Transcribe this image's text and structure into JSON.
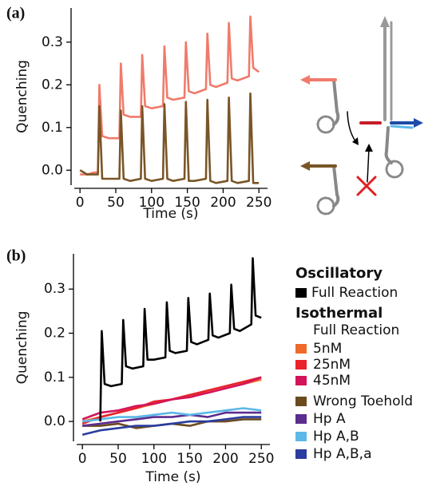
{
  "chart_data": [
    {
      "type": "line",
      "panel": "(a)",
      "x_label": "Time (s)",
      "y_label": "Quenching",
      "xlim": [
        -8,
        262
      ],
      "ylim": [
        -0.035,
        0.38
      ],
      "xticks": [
        0,
        50,
        100,
        150,
        200,
        250
      ],
      "yticks": [
        {
          "value": 0,
          "label": "0.0"
        },
        {
          "value": 0.1,
          "label": "0.1"
        },
        {
          "value": 0.2,
          "label": "0.2"
        },
        {
          "value": 0.3,
          "label": "0.3"
        }
      ],
      "x": [
        0,
        10,
        20,
        25,
        27,
        31,
        40,
        55,
        57,
        61,
        70,
        85,
        87,
        91,
        100,
        116,
        118,
        122,
        130,
        146,
        148,
        152,
        160,
        176,
        178,
        182,
        190,
        206,
        208,
        212,
        220,
        236,
        238,
        242,
        250
      ],
      "series": [
        {
          "color": "#ef7b6a",
          "values": [
            -0.01,
            -0.01,
            -0.005,
            -0.005,
            0.2,
            0.08,
            0.075,
            0.075,
            0.25,
            0.13,
            0.125,
            0.125,
            0.27,
            0.15,
            0.145,
            0.15,
            0.29,
            0.17,
            0.165,
            0.17,
            0.3,
            0.185,
            0.18,
            0.19,
            0.32,
            0.2,
            0.195,
            0.205,
            0.345,
            0.215,
            0.21,
            0.22,
            0.36,
            0.24,
            0.23
          ]
        },
        {
          "color": "#7a5527",
          "values": [
            0,
            -0.01,
            -0.01,
            -0.01,
            0.15,
            -0.02,
            -0.02,
            -0.02,
            0.14,
            -0.02,
            -0.025,
            -0.02,
            0.15,
            -0.02,
            -0.025,
            -0.02,
            0.155,
            -0.02,
            -0.025,
            -0.02,
            0.16,
            -0.025,
            -0.025,
            -0.02,
            0.165,
            -0.025,
            -0.03,
            -0.025,
            0.17,
            -0.025,
            -0.03,
            -0.025,
            0.18,
            -0.03,
            -0.03
          ]
        }
      ]
    },
    {
      "type": "line",
      "panel": "(b)",
      "x_label": "Time (s)",
      "y_label": "Quenching",
      "xlim": [
        -8,
        262
      ],
      "ylim": [
        -0.045,
        0.38
      ],
      "xticks": [
        0,
        50,
        100,
        150,
        200,
        250
      ],
      "yticks": [
        {
          "value": 0,
          "label": "0.0"
        },
        {
          "value": 0.1,
          "label": "0.1"
        },
        {
          "value": 0.2,
          "label": "0.2"
        },
        {
          "value": 0.3,
          "label": "0.3"
        }
      ],
      "legend": true,
      "legend_headings": [
        "Oscillatory",
        "Isothermal",
        "Full Reaction"
      ],
      "series": [
        {
          "name": "5nM",
          "color": "#ef6a2a",
          "x": [
            0,
            25,
            50,
            75,
            100,
            125,
            150,
            175,
            200,
            225,
            250
          ],
          "values": [
            0,
            0.01,
            0.02,
            0.03,
            0.04,
            0.05,
            0.06,
            0.065,
            0.075,
            0.085,
            0.095
          ]
        },
        {
          "name": "25nM",
          "color": "#e8232a",
          "x": [
            0,
            25,
            50,
            75,
            100,
            125,
            150,
            175,
            200,
            225,
            250
          ],
          "values": [
            -0.005,
            0.01,
            0.02,
            0.03,
            0.045,
            0.05,
            0.06,
            0.07,
            0.08,
            0.09,
            0.1
          ]
        },
        {
          "name": "45nM",
          "color": "#d4145a",
          "x": [
            0,
            25,
            50,
            75,
            100,
            125,
            150,
            175,
            200,
            225,
            250
          ],
          "values": [
            0.005,
            0.02,
            0.025,
            0.035,
            0.04,
            0.05,
            0.055,
            0.065,
            0.075,
            0.085,
            0.1
          ]
        },
        {
          "name": "Wrong Toehold",
          "color": "#6b4a1e",
          "x": [
            0,
            25,
            50,
            75,
            100,
            125,
            150,
            175,
            200,
            225,
            250
          ],
          "values": [
            -0.01,
            -0.01,
            -0.005,
            -0.015,
            -0.01,
            -0.005,
            -0.01,
            0,
            0,
            0.005,
            0.005
          ]
        },
        {
          "name": "Hp A",
          "color": "#5b2d8e",
          "x": [
            0,
            25,
            50,
            75,
            100,
            125,
            150,
            175,
            200,
            225,
            250
          ],
          "values": [
            -0.01,
            -0.005,
            0,
            0.005,
            0.01,
            0.01,
            0.015,
            0.01,
            0.02,
            0.02,
            0.02
          ]
        },
        {
          "name": "Hp A,B",
          "color": "#5bb8e8",
          "x": [
            0,
            25,
            50,
            75,
            100,
            125,
            150,
            175,
            200,
            225,
            250
          ],
          "values": [
            0,
            0.005,
            0.01,
            0.01,
            0.015,
            0.02,
            0.015,
            0.02,
            0.025,
            0.03,
            0.025
          ]
        },
        {
          "name": "Hp A,B,a",
          "color": "#2b3d9e",
          "x": [
            0,
            25,
            50,
            75,
            100,
            125,
            150,
            175,
            200,
            225,
            250
          ],
          "values": [
            -0.03,
            -0.02,
            -0.015,
            -0.01,
            -0.01,
            -0.005,
            0,
            0,
            0.005,
            0.01,
            0.01
          ]
        },
        {
          "name": "Full Reaction",
          "color": "#000000",
          "x": [
            0,
            10,
            20,
            25,
            27,
            31,
            40,
            55,
            57,
            61,
            70,
            85,
            87,
            91,
            100,
            116,
            118,
            122,
            130,
            146,
            148,
            152,
            160,
            176,
            178,
            182,
            190,
            206,
            208,
            212,
            220,
            236,
            238,
            242,
            250
          ],
          "values": [
            null,
            null,
            null,
            0,
            0.205,
            0.085,
            0.08,
            0.085,
            0.23,
            0.125,
            0.12,
            0.125,
            0.255,
            0.14,
            0.14,
            0.145,
            0.27,
            0.16,
            0.155,
            0.16,
            0.28,
            0.18,
            0.175,
            0.185,
            0.29,
            0.195,
            0.19,
            0.2,
            0.31,
            0.21,
            0.205,
            0.22,
            0.37,
            0.24,
            0.235
          ]
        }
      ]
    }
  ]
}
